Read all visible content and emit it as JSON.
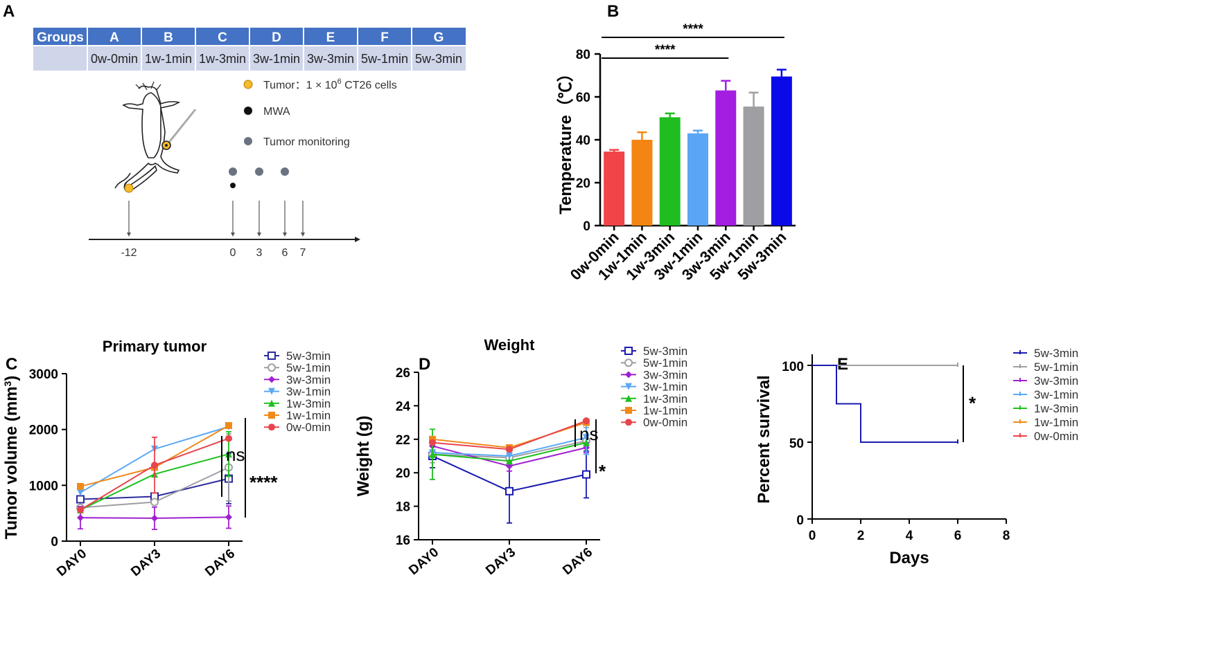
{
  "panels": {
    "A": "A",
    "B": "B",
    "C": "C",
    "D": "D",
    "E": "E"
  },
  "colors": {
    "table_header": "#4472c4",
    "table_row": "#cfd6ea",
    "tumor": "#f5bb2d",
    "mwa": "#111111",
    "monitor": "#6b7280",
    "G0": "#e8454d",
    "G1": "#f08a1a",
    "G2": "#1fbf1f",
    "G3": "#5aa8f5",
    "G4": "#a020e0",
    "G5": "#9e9ea3",
    "G6": "#1010e8"
  },
  "table": {
    "header": [
      "Groups",
      "A",
      "B",
      "C",
      "D",
      "E",
      "F",
      "G"
    ],
    "row": [
      "",
      "0w-0min",
      "1w-1min",
      "1w-3min",
      "3w-1min",
      "3w-3min",
      "5w-1min",
      "5w-3min"
    ]
  },
  "schematic": {
    "legend": [
      {
        "label": "Tumor：1 × 10",
        "sup": "6",
        "tail": " CT26 cells",
        "icon": "tumor-dot-icon",
        "color": "#f5bb2d"
      },
      {
        "label": "MWA",
        "sup": "",
        "tail": "",
        "icon": "mwa-dot-icon",
        "color": "#111111"
      },
      {
        "label": "Tumor monitoring",
        "sup": "",
        "tail": "",
        "icon": "monitor-dot-icon",
        "color": "#6b7280"
      }
    ],
    "timeline": [
      {
        "day": "-12",
        "events": [
          "tumor"
        ]
      },
      {
        "day": "0",
        "events": [
          "mwa",
          "monitor"
        ]
      },
      {
        "day": "3",
        "events": [
          "monitor"
        ]
      },
      {
        "day": "6",
        "events": [
          "monitor"
        ]
      },
      {
        "day": "7",
        "events": []
      }
    ]
  },
  "chart_data": [
    {
      "id": "B",
      "type": "bar",
      "title": "",
      "ylabel": "Temperature（℃）",
      "ylim": [
        0,
        80
      ],
      "yticks": [
        0,
        20,
        40,
        60,
        80
      ],
      "categories": [
        "0w-0min",
        "1w-1min",
        "1w-3min",
        "3w-1min",
        "3w-3min",
        "5w-1min",
        "5w-3min"
      ],
      "values": [
        34.5,
        40,
        50.5,
        43,
        63,
        55.5,
        69.5
      ],
      "errors": [
        0.8,
        3.5,
        1.8,
        1.3,
        4.5,
        6.5,
        3.2
      ],
      "colors": [
        "#f04448",
        "#f58512",
        "#1fbd1f",
        "#5aa5f5",
        "#a31ee0",
        "#9e9ea3",
        "#0a0ae8"
      ],
      "significance": [
        {
          "from": "0w-0min",
          "to": "3w-3min",
          "label": "****"
        },
        {
          "from": "0w-0min",
          "to": "5w-3min",
          "label": "****"
        }
      ]
    },
    {
      "id": "C",
      "type": "line",
      "title": "Primary tumor",
      "ylabel": "Tumor volume (mm",
      "ylabel_sup": "3",
      "ylabel_tail": ")",
      "ylim": [
        0,
        3000
      ],
      "yticks": [
        0,
        1000,
        2000,
        3000
      ],
      "categories": [
        "DAY0",
        "DAY3",
        "DAY6"
      ],
      "series": [
        {
          "name": "5w-3min",
          "values": [
            750,
            800,
            1120
          ],
          "errors": [
            0,
            0,
            450
          ],
          "color": "#2a2a9e",
          "marker": "square-open"
        },
        {
          "name": "5w-1min",
          "values": [
            600,
            700,
            1320
          ],
          "errors": [
            0,
            0,
            600
          ],
          "color": "#9e9ea3",
          "marker": "circle-open"
        },
        {
          "name": "3w-3min",
          "values": [
            420,
            410,
            430
          ],
          "errors": [
            200,
            200,
            200
          ],
          "color": "#a020d0",
          "marker": "diamond"
        },
        {
          "name": "3w-1min",
          "values": [
            870,
            1650,
            2050
          ],
          "errors": [
            0,
            0,
            0
          ],
          "color": "#5aa8f5",
          "marker": "triangle-down"
        },
        {
          "name": "1w-3min",
          "values": [
            560,
            1200,
            1560
          ],
          "errors": [
            0,
            0,
            400
          ],
          "color": "#1fbf1f",
          "marker": "triangle-up"
        },
        {
          "name": "1w-1min",
          "values": [
            980,
            1320,
            2070
          ],
          "errors": [
            0,
            0,
            0
          ],
          "color": "#f08a1a",
          "marker": "square"
        },
        {
          "name": "0w-0min",
          "values": [
            560,
            1360,
            1840
          ],
          "errors": [
            0,
            500,
            0
          ],
          "color": "#e8454d",
          "marker": "circle"
        }
      ],
      "significance": [
        {
          "label": "ns"
        },
        {
          "label": "****"
        }
      ]
    },
    {
      "id": "D",
      "type": "line",
      "title": "Weight",
      "ylabel": "Weight (g)",
      "ylim": [
        16,
        26
      ],
      "yticks": [
        16,
        18,
        20,
        22,
        24,
        26
      ],
      "categories": [
        "DAY0",
        "DAY3",
        "DAY6"
      ],
      "series": [
        {
          "name": "5w-3min",
          "values": [
            21.0,
            18.9,
            19.9
          ],
          "errors": [
            0.7,
            1.9,
            1.4
          ],
          "color": "#1a1ab0",
          "marker": "square-open"
        },
        {
          "name": "5w-1min",
          "values": [
            21.1,
            20.9,
            21.9
          ],
          "errors": [
            0.5,
            0.3,
            0.8
          ],
          "color": "#9e9ea3",
          "marker": "circle-open"
        },
        {
          "name": "3w-3min",
          "values": [
            21.6,
            20.4,
            21.5
          ],
          "errors": [
            0.3,
            0.3,
            0.3
          ],
          "color": "#a020d0",
          "marker": "diamond"
        },
        {
          "name": "3w-1min",
          "values": [
            21.2,
            21.0,
            22.1
          ],
          "errors": [
            0,
            0,
            1.0
          ],
          "color": "#5aa8f5",
          "marker": "triangle-down"
        },
        {
          "name": "1w-3min",
          "values": [
            21.1,
            20.7,
            21.8
          ],
          "errors": [
            1.5,
            0,
            0
          ],
          "color": "#1fbf1f",
          "marker": "triangle-up"
        },
        {
          "name": "1w-1min",
          "values": [
            22.0,
            21.5,
            23.0
          ],
          "errors": [
            0,
            0,
            0
          ],
          "color": "#f08a1a",
          "marker": "square"
        },
        {
          "name": "0w-0min",
          "values": [
            21.8,
            21.4,
            23.1
          ],
          "errors": [
            0,
            0,
            0
          ],
          "color": "#e8454d",
          "marker": "circle"
        }
      ],
      "significance": [
        {
          "label": "ns"
        },
        {
          "label": "*"
        }
      ]
    },
    {
      "id": "E",
      "type": "line",
      "title": "",
      "xlabel": "Days",
      "ylabel": "Percent survival",
      "xlim": [
        0,
        8
      ],
      "xticks": [
        0,
        2,
        4,
        6,
        8
      ],
      "ylim": [
        0,
        100
      ],
      "yticks": [
        0,
        50,
        100
      ],
      "series": [
        {
          "name": "5w-3min",
          "steps": [
            [
              0,
              100
            ],
            [
              1,
              100
            ],
            [
              1,
              75
            ],
            [
              2,
              75
            ],
            [
              2,
              50
            ],
            [
              6,
              50
            ]
          ],
          "color": "#1a1ab0"
        },
        {
          "name": "5w-1min",
          "steps": [
            [
              0,
              100
            ],
            [
              6,
              100
            ]
          ],
          "color": "#9e9ea3"
        },
        {
          "name": "3w-3min",
          "steps": [
            [
              0,
              100
            ],
            [
              6,
              100
            ]
          ],
          "color": "#a020d0"
        },
        {
          "name": "3w-1min",
          "steps": [
            [
              0,
              100
            ],
            [
              6,
              100
            ]
          ],
          "color": "#5aa8f5"
        },
        {
          "name": "1w-3min",
          "steps": [
            [
              0,
              100
            ],
            [
              6,
              100
            ]
          ],
          "color": "#1fbf1f"
        },
        {
          "name": "1w-1min",
          "steps": [
            [
              0,
              100
            ],
            [
              6,
              100
            ]
          ],
          "color": "#f08a1a"
        },
        {
          "name": "0w-0min",
          "steps": [
            [
              0,
              100
            ],
            [
              6,
              100
            ]
          ],
          "color": "#e8454d"
        }
      ],
      "significance": [
        {
          "label": "*"
        }
      ]
    }
  ]
}
